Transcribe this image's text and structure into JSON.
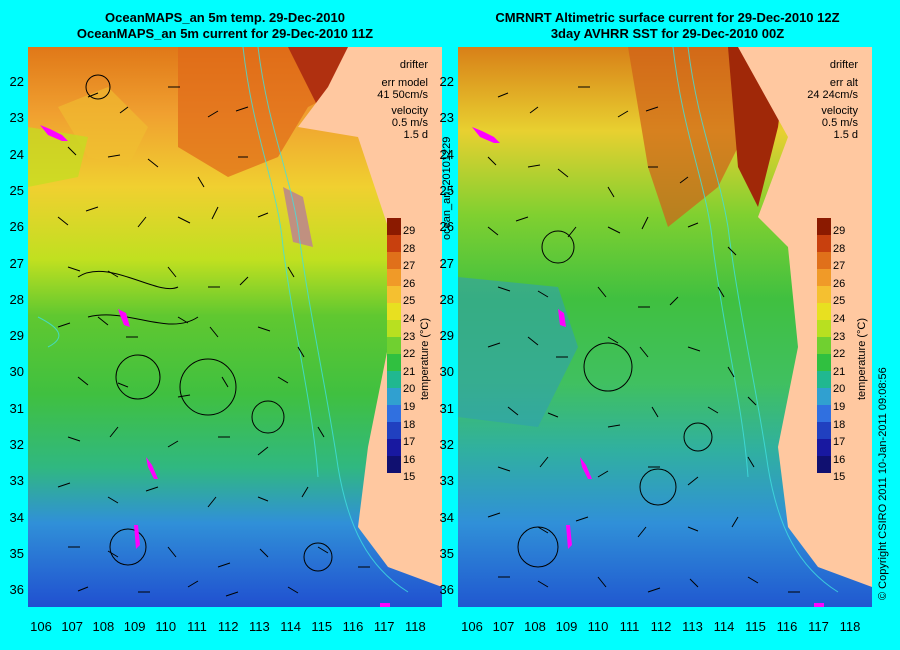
{
  "left_panel": {
    "title_line1": "OceanMAPS_an 5m temp. 29-Dec-2010",
    "title_line2": "OceanMAPS_an 5m current for 29-Dec-2010 11Z",
    "legend": {
      "drifter": "drifter",
      "err_label": "err model",
      "err_value": "41 50cm/s",
      "velocity": "velocity",
      "velocity_scale": "0.5 m/s",
      "duration": "1.5 d"
    }
  },
  "right_panel": {
    "title_line1": "CMRNRT Altimetric surface current for 29-Dec-2010 12Z",
    "title_line2": "3day AVHRR SST for 29-Dec-2010 00Z",
    "legend": {
      "drifter": "drifter",
      "err_label": "err alt",
      "err_value": "24 24cm/s",
      "velocity": "velocity",
      "velocity_scale": "0.5 m/s",
      "duration": "1.5 d"
    }
  },
  "side_label": "ocean_an_20101229",
  "copyright": "© Copyright CSIRO 2011   10-Jan-2011 09:08:56",
  "lat_ticks": [
    "22",
    "23",
    "24",
    "25",
    "26",
    "27",
    "28",
    "29",
    "30",
    "31",
    "32",
    "33",
    "34",
    "35",
    "36"
  ],
  "lon_ticks": [
    "106",
    "107",
    "108",
    "109",
    "110",
    "111",
    "112",
    "113",
    "114",
    "115",
    "116",
    "117",
    "118"
  ],
  "colorbar": {
    "title": "temperature (°C)",
    "labels": [
      "29",
      "28",
      "27",
      "26",
      "25",
      "24",
      "23",
      "22",
      "21",
      "20",
      "19",
      "18",
      "17",
      "16",
      "15"
    ],
    "colors": [
      "#8b1a00",
      "#c8400e",
      "#e0701a",
      "#f09a28",
      "#f5c030",
      "#e8e020",
      "#b8e020",
      "#70d030",
      "#30c040",
      "#20b890",
      "#30a0d0",
      "#3070e0",
      "#2040c0",
      "#1818a0",
      "#101070"
    ]
  },
  "colors": {
    "background": "#00ffff",
    "land": "#ffc8a0",
    "drifter": "#ff00ff"
  }
}
